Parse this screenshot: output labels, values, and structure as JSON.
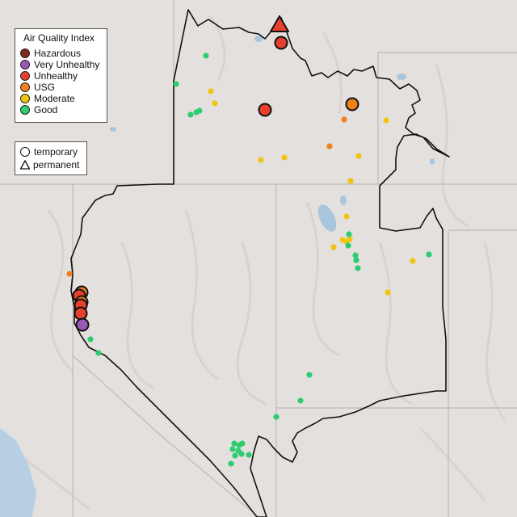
{
  "legend": {
    "title": "Air Quality Index",
    "categories": [
      {
        "label": "Hazardous",
        "color": "#7e2a20"
      },
      {
        "label": "Very Unhealthy",
        "color": "#9b59b6"
      },
      {
        "label": "Unhealthy",
        "color": "#e8402f"
      },
      {
        "label": "USG",
        "color": "#f07f1c"
      },
      {
        "label": "Moderate",
        "color": "#f1c40f"
      },
      {
        "label": "Good",
        "color": "#2ecc71"
      }
    ]
  },
  "type_legend": {
    "temporary": "temporary",
    "permanent": "permanent"
  },
  "colors": {
    "background": "#e3e0dd",
    "border": "#111111",
    "state_lines": "#bdbab7",
    "water": "#a9c6df",
    "ocean": "#b8cfe3"
  },
  "monitors": [
    {
      "level": "Unhealthy",
      "type": "permanent",
      "size": "large"
    },
    {
      "level": "Unhealthy",
      "type": "temporary",
      "size": "large"
    },
    {
      "level": "Unhealthy",
      "type": "temporary",
      "size": "large"
    },
    {
      "level": "USG",
      "type": "temporary",
      "size": "large"
    },
    {
      "level": "USG",
      "type": "temporary",
      "size": "large"
    },
    {
      "level": "Unhealthy",
      "type": "temporary",
      "size": "large"
    },
    {
      "level": "USG",
      "type": "temporary",
      "size": "large"
    },
    {
      "level": "Unhealthy",
      "type": "temporary",
      "size": "large"
    },
    {
      "level": "Unhealthy",
      "type": "temporary",
      "size": "large"
    },
    {
      "level": "Very Unhealthy",
      "type": "temporary",
      "size": "large"
    }
  ]
}
